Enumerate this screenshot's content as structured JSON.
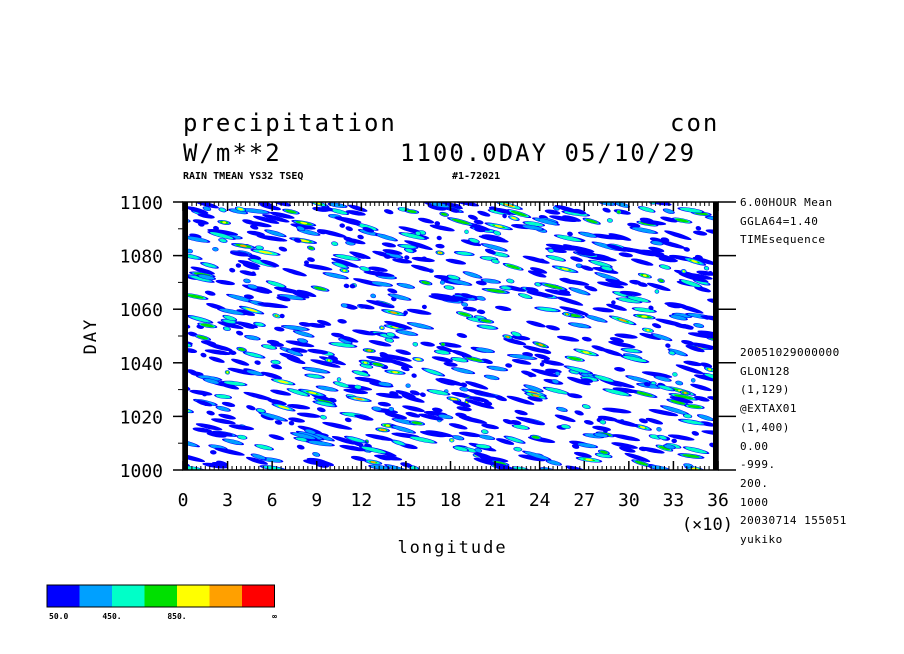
{
  "header": {
    "variable": "precipitation",
    "experiment": "con",
    "units": "W/m**2",
    "time": "1100.0DAY 05/10/29",
    "subtitle_left": "RAIN TMEAN YS32 TSEQ",
    "subtitle_right": "#1-72021"
  },
  "side_info": {
    "top": [
      "6.00HOUR Mean",
      "GGLA64=1.40",
      "TIMEsequence"
    ],
    "bottom": [
      "20051029000000",
      "GLON128",
      "(1,129)",
      "@EXTAX01",
      "(1,400)",
      "0.00",
      "-999.",
      "200.",
      "1000",
      "20030714 155051",
      "yukiko"
    ]
  },
  "chart_data": {
    "type": "heatmap",
    "title": "precipitation",
    "xlabel": "longitude",
    "ylabel": "DAY",
    "x_multiplier_label": "(×10)",
    "xlim": [
      0,
      36
    ],
    "ylim": [
      1000,
      1100
    ],
    "xticks": [
      "0",
      "3",
      "6",
      "9",
      "12",
      "15",
      "18",
      "21",
      "24",
      "27",
      "30",
      "33",
      "36"
    ],
    "yticks": [
      "1000",
      "1020",
      "1040",
      "1060",
      "1080",
      "1100"
    ],
    "levels": [
      50,
      250,
      450,
      650,
      850,
      1050
    ],
    "colorbar": {
      "colors": [
        "#0000ff",
        "#00a0ff",
        "#00ffc8",
        "#00e000",
        "#ffff00",
        "#ffa000",
        "#ff0000"
      ],
      "labels": [
        "50.0",
        "450.",
        "850.",
        "∞"
      ]
    }
  }
}
